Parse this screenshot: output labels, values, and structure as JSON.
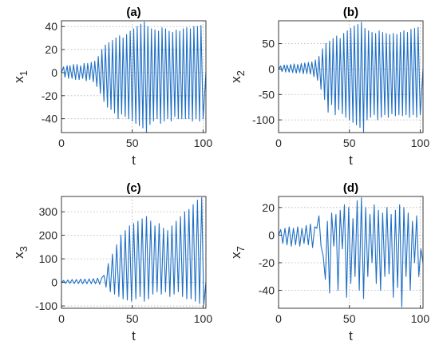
{
  "figure": {
    "line_color": "#1f6fc4",
    "axis_color": "#262626",
    "grid_color": "#b0b0b0"
  },
  "chart_data": [
    {
      "type": "line",
      "title": "(a)",
      "xlabel": "t",
      "ylabel_base": "x",
      "ylabel_sub": "1",
      "xlim": [
        0,
        102
      ],
      "ylim": [
        -52,
        45
      ],
      "xticks": [
        0,
        50,
        100
      ],
      "yticks": [
        -40,
        -20,
        0,
        20,
        40
      ],
      "grid": true,
      "series": [
        {
          "x": [
            0,
            1.5,
            2.5,
            4,
            5,
            6,
            7.5,
            8.5,
            10,
            11,
            12.5,
            13.5,
            15,
            16,
            17.5,
            18.5,
            20,
            21,
            22.5,
            23.5,
            25,
            26,
            27.5,
            28.5,
            30,
            31,
            32.5,
            33.5,
            35,
            36,
            37.5,
            38.5,
            40,
            41,
            42.5,
            43.5,
            45,
            46,
            47.5,
            48.5,
            50,
            51,
            52.5,
            53.5,
            55,
            56,
            57.5,
            58.5,
            60,
            61,
            62.5,
            63.5,
            65,
            66,
            67.5,
            68.5,
            70,
            71,
            72.5,
            73.5,
            75,
            76,
            77.5,
            78.5,
            80,
            81,
            82.5,
            83.5,
            85,
            86,
            87.5,
            88.5,
            90,
            91,
            92.5,
            93.5,
            95,
            96,
            97.5,
            98.5,
            100,
            102
          ],
          "y": [
            0,
            5,
            -4,
            6,
            -5,
            6,
            -5,
            7,
            -6,
            7,
            -6,
            6,
            -5,
            8,
            -7,
            8,
            -6,
            9,
            -8,
            10,
            -12,
            14,
            -18,
            20,
            -25,
            24,
            -30,
            26,
            -32,
            28,
            -35,
            30,
            -40,
            32,
            -36,
            30,
            -38,
            33,
            -40,
            36,
            -42,
            38,
            -44,
            40,
            -46,
            42,
            -48,
            44,
            -52,
            40,
            -45,
            38,
            -42,
            37,
            -40,
            36,
            -44,
            39,
            -42,
            38,
            -40,
            36,
            -42,
            35,
            -38,
            37,
            -40,
            36,
            -40,
            38,
            -40,
            39,
            -40,
            38,
            -42,
            40,
            -40,
            40,
            -42,
            41,
            -40,
            0
          ]
        }
      ]
    },
    {
      "type": "line",
      "title": "(b)",
      "xlabel": "t",
      "ylabel_base": "x",
      "ylabel_sub": "2",
      "xlim": [
        0,
        102
      ],
      "ylim": [
        -125,
        95
      ],
      "xticks": [
        0,
        50,
        100
      ],
      "yticks": [
        -100,
        -50,
        0,
        50
      ],
      "grid": true,
      "series": [
        {
          "x": [
            0,
            1.5,
            2.5,
            4,
            5,
            6,
            7.5,
            8.5,
            10,
            11,
            12.5,
            13.5,
            15,
            16,
            17.5,
            18.5,
            20,
            21,
            22.5,
            23.5,
            25,
            26,
            27.5,
            28.5,
            30,
            31,
            32.5,
            33.5,
            35,
            36,
            37.5,
            38.5,
            40,
            41,
            42.5,
            43.5,
            45,
            46,
            47.5,
            48.5,
            50,
            51,
            52.5,
            53.5,
            55,
            56,
            57.5,
            58.5,
            60,
            61,
            62.5,
            63.5,
            65,
            66,
            67.5,
            68.5,
            70,
            71,
            72.5,
            73.5,
            75,
            76,
            77.5,
            78.5,
            80,
            81,
            82.5,
            83.5,
            85,
            86,
            87.5,
            88.5,
            90,
            91,
            92.5,
            93.5,
            95,
            96,
            97.5,
            98.5,
            100,
            102
          ],
          "y": [
            0,
            6,
            -5,
            8,
            -6,
            8,
            -6,
            9,
            -7,
            10,
            -8,
            9,
            -7,
            11,
            -9,
            12,
            -9,
            13,
            -10,
            14,
            -15,
            18,
            -22,
            25,
            -40,
            40,
            -60,
            50,
            -85,
            55,
            -70,
            60,
            -90,
            65,
            -80,
            60,
            -88,
            70,
            -95,
            75,
            -100,
            80,
            -105,
            85,
            -110,
            88,
            -115,
            92,
            -125,
            80,
            -100,
            75,
            -95,
            72,
            -90,
            70,
            -100,
            75,
            -95,
            72,
            -90,
            70,
            -95,
            68,
            -88,
            70,
            -92,
            68,
            -90,
            72,
            -92,
            75,
            -90,
            72,
            -95,
            78,
            -90,
            80,
            -95,
            82,
            -90,
            0
          ]
        }
      ]
    },
    {
      "type": "line",
      "title": "(c)",
      "xlabel": "t",
      "ylabel_base": "x",
      "ylabel_sub": "3",
      "xlim": [
        0,
        102
      ],
      "ylim": [
        -110,
        365
      ],
      "xticks": [
        0,
        50,
        100
      ],
      "yticks": [
        -100,
        0,
        100,
        200,
        300
      ],
      "grid": true,
      "series": [
        {
          "x": [
            0,
            1.5,
            3,
            4.5,
            6,
            7.5,
            9,
            10.5,
            12,
            13.5,
            15,
            16.5,
            18,
            19.5,
            21,
            22.5,
            24,
            25.5,
            27,
            28.5,
            30,
            31.5,
            33,
            34.5,
            36,
            37.5,
            39,
            40.5,
            42,
            43.5,
            45,
            46.5,
            48,
            49.5,
            51,
            52.5,
            54,
            55.5,
            57,
            58.5,
            60,
            61.5,
            63,
            64.5,
            66,
            67.5,
            69,
            70.5,
            72,
            73.5,
            75,
            76.5,
            78,
            79.5,
            81,
            82.5,
            84,
            85.5,
            87,
            88.5,
            90,
            91.5,
            93,
            94.5,
            96,
            97.5,
            99,
            100.5,
            102
          ],
          "y": [
            0,
            8,
            -4,
            10,
            -4,
            12,
            -5,
            12,
            -5,
            14,
            -6,
            14,
            -6,
            15,
            -6,
            16,
            -6,
            18,
            -8,
            20,
            30,
            -20,
            80,
            -40,
            120,
            -50,
            160,
            -60,
            200,
            -70,
            220,
            -75,
            240,
            -80,
            250,
            -70,
            260,
            -60,
            270,
            -80,
            280,
            -70,
            260,
            -50,
            240,
            -40,
            250,
            -50,
            230,
            -40,
            220,
            -60,
            240,
            -50,
            260,
            -40,
            280,
            -60,
            300,
            -70,
            310,
            -70,
            330,
            -80,
            350,
            -90,
            360,
            -95,
            0
          ]
        }
      ]
    },
    {
      "type": "line",
      "title": "(d)",
      "xlabel": "t",
      "ylabel_base": "x",
      "ylabel_sub": "7",
      "xlim": [
        0,
        102
      ],
      "ylim": [
        -53,
        28
      ],
      "xticks": [
        0,
        50,
        100
      ],
      "yticks": [
        -40,
        -20,
        0,
        20
      ],
      "grid": true,
      "series": [
        {
          "x": [
            0,
            1.5,
            3,
            4.5,
            6,
            7.5,
            9,
            10.5,
            12,
            13.5,
            15,
            16.5,
            18,
            19.5,
            21,
            22.5,
            24,
            25.5,
            27,
            28.5,
            30,
            31.5,
            33,
            34.5,
            36,
            37.5,
            39,
            40.5,
            42,
            43.5,
            45,
            46.5,
            48,
            49.5,
            51,
            52.5,
            54,
            55.5,
            57,
            58.5,
            60,
            61.5,
            63,
            64.5,
            66,
            67.5,
            69,
            70.5,
            72,
            73.5,
            75,
            76.5,
            78,
            79.5,
            81,
            82.5,
            84,
            85.5,
            87,
            88.5,
            90,
            91.5,
            93,
            94.5,
            96,
            97.5,
            99,
            100.5,
            102
          ],
          "y": [
            0,
            4,
            -6,
            5,
            -7,
            6,
            -8,
            5,
            -7,
            6,
            -8,
            5,
            -6,
            7,
            -7,
            8,
            -9,
            6,
            5,
            14,
            -8,
            -15,
            -32,
            10,
            -42,
            16,
            -8,
            15,
            -40,
            18,
            -10,
            22,
            -45,
            20,
            -35,
            12,
            -30,
            25,
            -40,
            27,
            -46,
            20,
            -30,
            15,
            -20,
            22,
            -35,
            18,
            -40,
            16,
            -30,
            20,
            -28,
            15,
            -45,
            18,
            -38,
            22,
            -52,
            20,
            -30,
            16,
            -40,
            10,
            -20,
            14,
            -30,
            -10,
            -20
          ]
        }
      ]
    }
  ]
}
